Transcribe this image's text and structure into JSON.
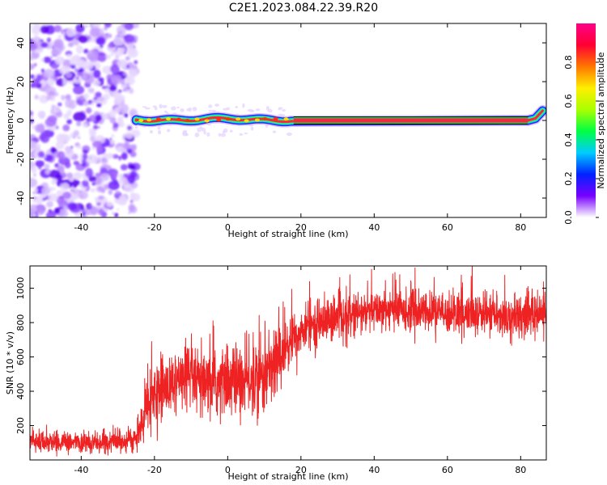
{
  "title": "C2E1.2023.084.22.39.R20",
  "chart_data": [
    {
      "type": "heatmap",
      "name": "spectrogram",
      "xlabel": "Height of straight line (km)",
      "ylabel": "Frequency (Hz)",
      "xlim": [
        -54,
        87
      ],
      "ylim": [
        -50,
        50
      ],
      "xticks": [
        -40,
        -20,
        0,
        20,
        40,
        60,
        80
      ],
      "yticks": [
        -40,
        -20,
        0,
        20,
        40
      ],
      "grid": false,
      "noise_region": {
        "x_start": -54,
        "x_end": -25
      },
      "ridge": {
        "description_values": "frequency ridge near 0 Hz",
        "x_start": -25,
        "x_end": 86,
        "frequency": 0,
        "hook_end": [
          [
            82,
            0
          ],
          [
            84,
            1
          ],
          [
            86,
            5
          ]
        ]
      },
      "colorbar": {
        "label": "Normalized spectral amplitude",
        "range": [
          0.0,
          1.0
        ],
        "ticks": [
          0.0,
          0.2,
          0.4,
          0.6,
          0.8
        ],
        "colors": [
          "#ffffff",
          "#7700ff",
          "#0022ff",
          "#00ccff",
          "#00ff44",
          "#aaff00",
          "#ffee00",
          "#ff7700",
          "#ff0033",
          "#ff0088"
        ]
      }
    },
    {
      "type": "line",
      "name": "snr",
      "xlabel": "Height of straight line (km)",
      "ylabel": "SNR (10 * v/v)",
      "xlim": [
        -54,
        87
      ],
      "ylim": [
        0,
        1130
      ],
      "xticks": [
        -40,
        -20,
        0,
        20,
        40,
        60,
        80
      ],
      "yticks": [
        200,
        400,
        600,
        800,
        1000
      ],
      "color": "#ee2222",
      "trend": [
        {
          "x": -54,
          "y": 110
        },
        {
          "x": -40,
          "y": 100
        },
        {
          "x": -30,
          "y": 105
        },
        {
          "x": -25,
          "y": 120
        },
        {
          "x": -22,
          "y": 300
        },
        {
          "x": -18,
          "y": 420
        },
        {
          "x": -10,
          "y": 470
        },
        {
          "x": -6,
          "y": 420
        },
        {
          "x": 0,
          "y": 470
        },
        {
          "x": 5,
          "y": 460
        },
        {
          "x": 10,
          "y": 490
        },
        {
          "x": 14,
          "y": 600
        },
        {
          "x": 18,
          "y": 720
        },
        {
          "x": 25,
          "y": 800
        },
        {
          "x": 35,
          "y": 850
        },
        {
          "x": 45,
          "y": 880
        },
        {
          "x": 55,
          "y": 860
        },
        {
          "x": 65,
          "y": 850
        },
        {
          "x": 75,
          "y": 840
        },
        {
          "x": 87,
          "y": 850
        }
      ],
      "spread": [
        {
          "x": -54,
          "y": 45
        },
        {
          "x": -25,
          "y": 50
        },
        {
          "x": -22,
          "y": 140
        },
        {
          "x": -6,
          "y": 160
        },
        {
          "x": 14,
          "y": 190
        },
        {
          "x": 20,
          "y": 110
        },
        {
          "x": 40,
          "y": 95
        },
        {
          "x": 87,
          "y": 95
        }
      ]
    }
  ]
}
